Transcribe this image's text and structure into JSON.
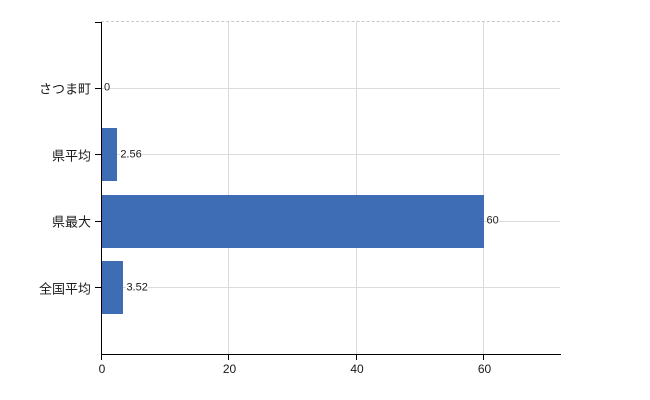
{
  "chart_data": {
    "type": "bar",
    "orientation": "horizontal",
    "title": "",
    "categories": [
      "さつま町",
      "県平均",
      "県最大",
      "全国平均"
    ],
    "values": [
      0,
      2.56,
      60,
      3.52
    ],
    "value_labels": [
      "0",
      "2.56",
      "60",
      "3.52"
    ],
    "series": [
      {
        "name": "値",
        "values": [
          0,
          2.56,
          60,
          3.52
        ]
      }
    ],
    "x_ticks": [
      0,
      20,
      40,
      60
    ],
    "x_tick_labels": [
      "0",
      "20",
      "40",
      "60"
    ],
    "xlim": [
      0,
      72
    ],
    "ylabel": "",
    "xlabel": "",
    "grid": "on",
    "legend_position": "none",
    "colors": {
      "bar": "#3e6db5",
      "axis": "#000000",
      "gridline": "#d9dcd9",
      "top_border": "#c9c9c9",
      "text": "#1a1a1a",
      "background": "#ffffff"
    }
  }
}
